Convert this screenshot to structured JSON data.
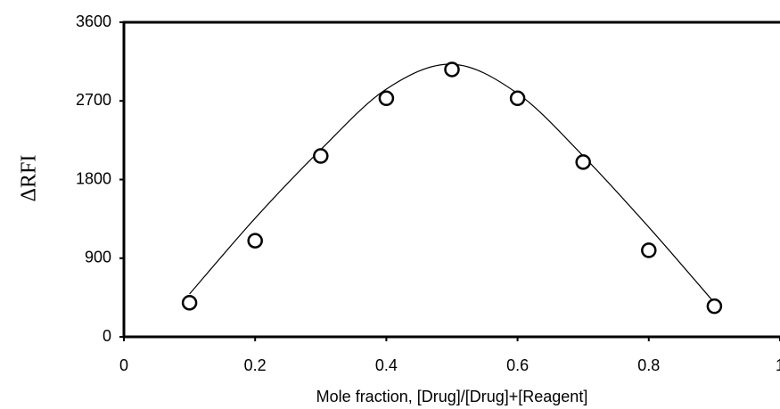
{
  "chart_data": {
    "type": "scatter",
    "x_label": "Mole fraction, [Drug]/[Drug]+[Reagent]",
    "y_label": "ΔRFI",
    "x": [
      0.1,
      0.2,
      0.3,
      0.4,
      0.5,
      0.6,
      0.7,
      0.8,
      0.9
    ],
    "values": [
      390,
      1100,
      2070,
      2730,
      3060,
      2730,
      2000,
      990,
      350
    ],
    "fit": {
      "x": [
        0.1,
        0.2,
        0.3,
        0.4,
        0.5,
        0.6,
        0.7,
        0.8,
        0.9
      ],
      "values": [
        490,
        1357,
        2142,
        2835,
        3120,
        2785,
        2070,
        1255,
        390
      ]
    },
    "color": "#000000",
    "xlim": [
      0,
      1
    ],
    "xticks": [
      0,
      0.2,
      0.4,
      0.6,
      0.8,
      1
    ],
    "ylim": [
      0,
      3600
    ],
    "yticks": [
      0,
      900,
      1800,
      2700,
      3600
    ]
  }
}
